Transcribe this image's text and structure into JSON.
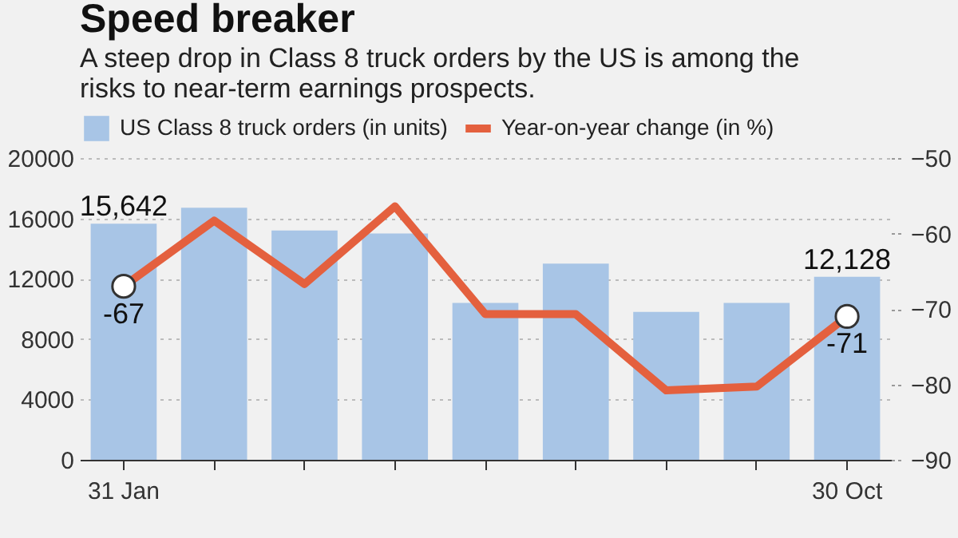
{
  "chart_data": {
    "type": "bar",
    "title": "Speed breaker",
    "subtitle": "A steep drop in Class 8 truck orders by the US is among the risks to near-term earnings prospects.",
    "categories": [
      "31 Jan",
      null,
      null,
      null,
      null,
      null,
      null,
      null,
      "30 Oct"
    ],
    "series": [
      {
        "name": "US Class 8 truck orders (in units)",
        "color": "#a8c5e6",
        "values": [
          15642,
          16700,
          15200,
          15000,
          10400,
          13000,
          9800,
          10400,
          12128
        ],
        "value_labels": [
          "15,642",
          null,
          null,
          null,
          null,
          null,
          null,
          null,
          "12,128"
        ]
      },
      {
        "name": "Year-on-year change (in %)",
        "type": "line",
        "axis": "y2",
        "color": "#e4603e",
        "values": [
          -67,
          -58.3,
          -66.7,
          -56.4,
          -70.7,
          -70.7,
          -80.8,
          -80.3,
          -71
        ],
        "value_labels": [
          "-67",
          null,
          null,
          null,
          null,
          null,
          null,
          null,
          "-71"
        ]
      }
    ],
    "ylim": [
      0,
      20000
    ],
    "yticks": [
      0,
      4000,
      8000,
      12000,
      16000,
      20000
    ],
    "y2lim": [
      -90,
      -50
    ],
    "y2ticks": [
      -90,
      -80,
      -70,
      -60,
      -50
    ],
    "grid": "y",
    "legend": "top"
  }
}
